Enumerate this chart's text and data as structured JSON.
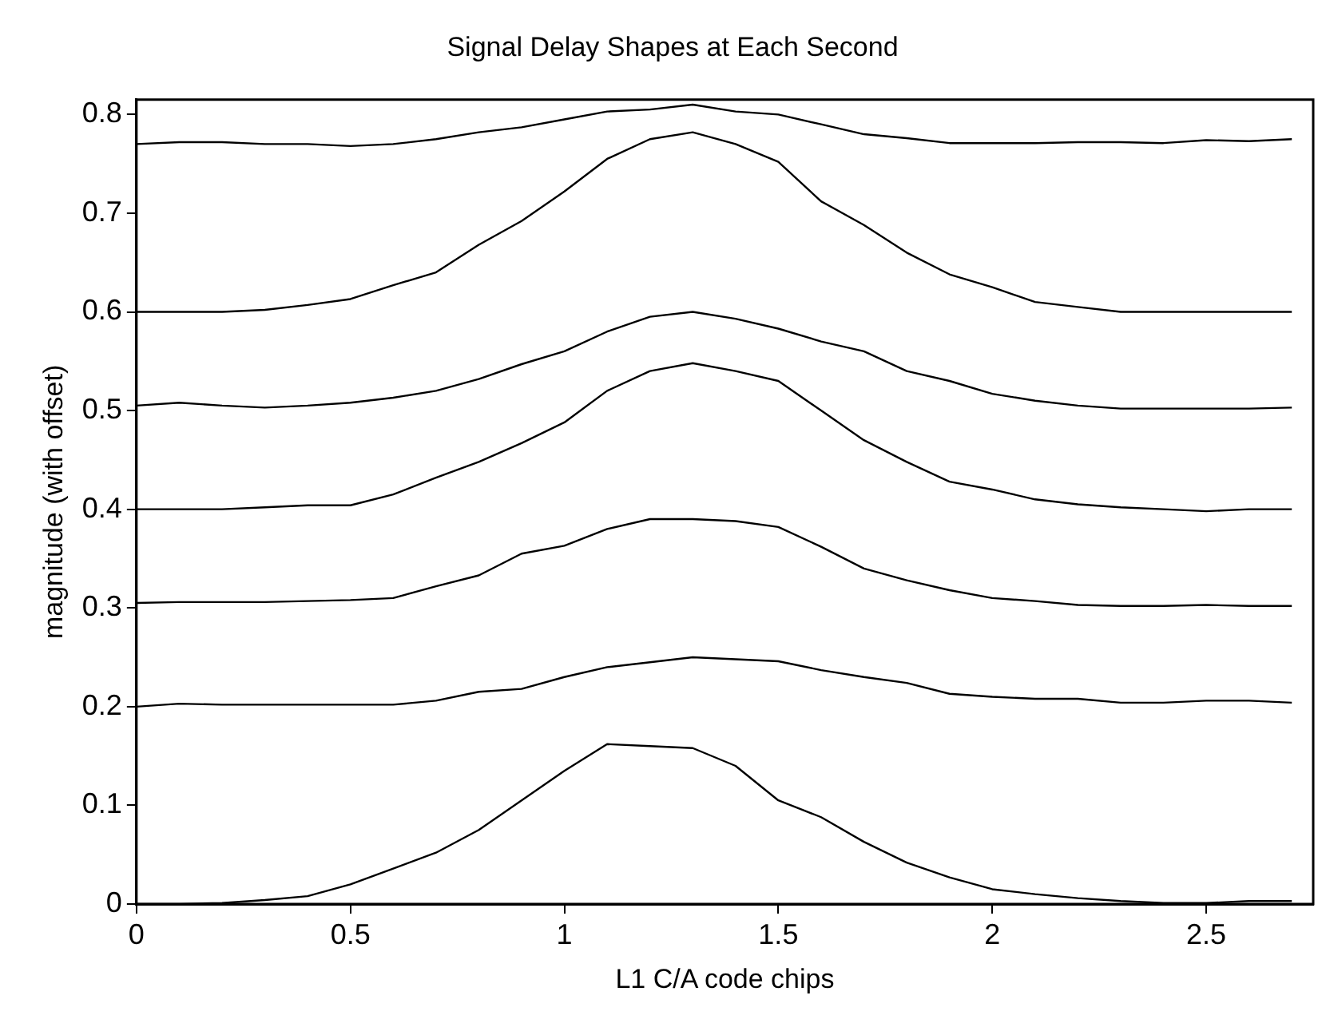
{
  "chart_data": {
    "type": "line",
    "title": "Signal Delay Shapes at Each Second",
    "xlabel": "L1 C/A code chips",
    "ylabel": "magnitude (with offset)",
    "x": [
      0,
      0.1,
      0.2,
      0.3,
      0.4,
      0.5,
      0.6,
      0.7,
      0.8,
      0.9,
      1,
      1.1,
      1.2,
      1.3,
      1.4,
      1.5,
      1.6,
      1.7,
      1.8,
      1.9,
      2,
      2.1,
      2.2,
      2.3,
      2.4,
      2.5,
      2.6,
      2.7
    ],
    "series": [
      {
        "color": "#000000",
        "values": [
          0,
          0,
          0.001,
          0.004,
          0.008,
          0.02,
          0.036,
          0.052,
          0.075,
          0.105,
          0.135,
          0.162,
          0.16,
          0.158,
          0.14,
          0.105,
          0.088,
          0.063,
          0.042,
          0.027,
          0.015,
          0.01,
          0.006,
          0.003,
          0.001,
          0.001,
          0.003,
          0.003
        ]
      },
      {
        "color": "#000000",
        "values": [
          0.2,
          0.203,
          0.202,
          0.202,
          0.202,
          0.202,
          0.202,
          0.206,
          0.215,
          0.218,
          0.23,
          0.24,
          0.245,
          0.25,
          0.248,
          0.246,
          0.237,
          0.23,
          0.224,
          0.213,
          0.21,
          0.208,
          0.208,
          0.204,
          0.204,
          0.206,
          0.206,
          0.204
        ]
      },
      {
        "color": "#000000",
        "values": [
          0.305,
          0.306,
          0.306,
          0.306,
          0.307,
          0.308,
          0.31,
          0.322,
          0.333,
          0.355,
          0.363,
          0.38,
          0.39,
          0.39,
          0.388,
          0.382,
          0.362,
          0.34,
          0.328,
          0.318,
          0.31,
          0.307,
          0.303,
          0.302,
          0.302,
          0.303,
          0.302,
          0.302
        ]
      },
      {
        "color": "#000000",
        "values": [
          0.4,
          0.4,
          0.4,
          0.402,
          0.404,
          0.404,
          0.415,
          0.432,
          0.448,
          0.467,
          0.488,
          0.52,
          0.54,
          0.548,
          0.54,
          0.53,
          0.5,
          0.47,
          0.448,
          0.428,
          0.42,
          0.41,
          0.405,
          0.402,
          0.4,
          0.398,
          0.4,
          0.4
        ]
      },
      {
        "color": "#000000",
        "values": [
          0.505,
          0.508,
          0.505,
          0.503,
          0.505,
          0.508,
          0.513,
          0.52,
          0.532,
          0.547,
          0.56,
          0.58,
          0.595,
          0.6,
          0.593,
          0.583,
          0.57,
          0.56,
          0.54,
          0.53,
          0.517,
          0.51,
          0.505,
          0.502,
          0.502,
          0.502,
          0.502,
          0.503
        ]
      },
      {
        "color": "#000000",
        "values": [
          0.6,
          0.6,
          0.6,
          0.602,
          0.607,
          0.613,
          0.627,
          0.64,
          0.668,
          0.692,
          0.722,
          0.755,
          0.775,
          0.782,
          0.77,
          0.752,
          0.712,
          0.688,
          0.66,
          0.638,
          0.625,
          0.61,
          0.605,
          0.6,
          0.6,
          0.6,
          0.6,
          0.6
        ]
      },
      {
        "color": "#000000",
        "values": [
          0.77,
          0.772,
          0.772,
          0.77,
          0.77,
          0.768,
          0.77,
          0.775,
          0.782,
          0.787,
          0.795,
          0.803,
          0.805,
          0.81,
          0.803,
          0.8,
          0.79,
          0.78,
          0.776,
          0.771,
          0.771,
          0.771,
          0.772,
          0.772,
          0.771,
          0.774,
          0.773,
          0.775
        ]
      }
    ],
    "xlim": [
      0,
      2.75
    ],
    "xticks": [
      0,
      0.5,
      1,
      1.5,
      2,
      2.5
    ],
    "ylim": [
      0,
      0.815
    ],
    "yticks": [
      0,
      0.1,
      0.2,
      0.3,
      0.4,
      0.5,
      0.6,
      0.7,
      0.8
    ],
    "grid": false,
    "legend": false,
    "marker": "none",
    "line_style": "solid"
  }
}
